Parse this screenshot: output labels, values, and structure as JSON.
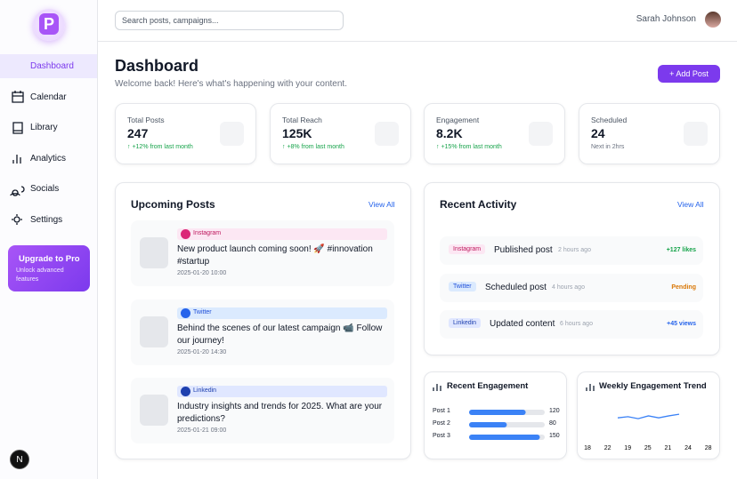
{
  "sidebar": {
    "logo": "P",
    "nav": [
      {
        "label": "Dashboard",
        "active": true
      },
      {
        "label": "Calendar",
        "active": false
      },
      {
        "label": "Library",
        "active": false
      },
      {
        "label": "Analytics",
        "active": false
      },
      {
        "label": "Socials",
        "active": false
      },
      {
        "label": "Settings",
        "active": false
      }
    ],
    "upgrade": {
      "title": "Upgrade to Pro",
      "text": "Unlock advanced features"
    },
    "badge": "N"
  },
  "header": {
    "search_placeholder": "Search posts, campaigns...",
    "user": "Sarah Johnson"
  },
  "page": {
    "title": "Dashboard",
    "subtitle": "Welcome back! Here's what's happening with your content.",
    "button": "+ Add Post"
  },
  "stats": [
    {
      "label": "Total Posts",
      "value": "247",
      "note": "↑ +12% from last month",
      "positive": true
    },
    {
      "label": "Total Reach",
      "value": "125K",
      "note": "↑ +8% from last month",
      "positive": true
    },
    {
      "label": "Engagement",
      "value": "8.2K",
      "note": "↑ +15% from last month",
      "positive": true
    },
    {
      "label": "Scheduled",
      "value": "24",
      "note": "Next in 2hrs",
      "positive": false
    }
  ],
  "upcoming": {
    "title": "Upcoming Posts",
    "link": "View All",
    "posts": [
      {
        "platform": "Instagram",
        "text": "New product launch coming soon! 🚀 #innovation #startup",
        "date": "2025-01-20 10:00"
      },
      {
        "platform": "Twitter",
        "text": "Behind the scenes of our latest campaign 📹 Follow our journey!",
        "date": "2025-01-20 14:30"
      },
      {
        "platform": "Linkedin",
        "text": "Industry insights and trends for 2025. What are your predictions?",
        "date": "2025-01-21 09:00"
      }
    ]
  },
  "activity": {
    "title": "Recent Activity",
    "link": "View All",
    "items": [
      {
        "platform": "Instagram",
        "action": "Published post",
        "time": "2 hours ago",
        "result": "+127 likes"
      },
      {
        "platform": "Twitter",
        "action": "Scheduled post",
        "time": "4 hours ago",
        "result": "Pending"
      },
      {
        "platform": "Linkedin",
        "action": "Updated content",
        "time": "6 hours ago",
        "result": "+45 views"
      }
    ]
  },
  "engagement": {
    "type": "bar",
    "title": "Recent Engagement",
    "categories": [
      "Post 1",
      "Post 2",
      "Post 3"
    ],
    "values": [
      120,
      80,
      150
    ],
    "xlim": [
      0,
      200
    ],
    "color": "#3b82f6"
  },
  "trend": {
    "type": "line",
    "title": "Weekly Engagement Trend",
    "categories": [
      "18",
      "22",
      "19",
      "25",
      "21",
      "24",
      "28"
    ],
    "values": [
      44,
      47,
      42,
      49,
      44,
      49,
      53
    ],
    "ylim": [
      0,
      100
    ],
    "color": "#3b82f6"
  }
}
